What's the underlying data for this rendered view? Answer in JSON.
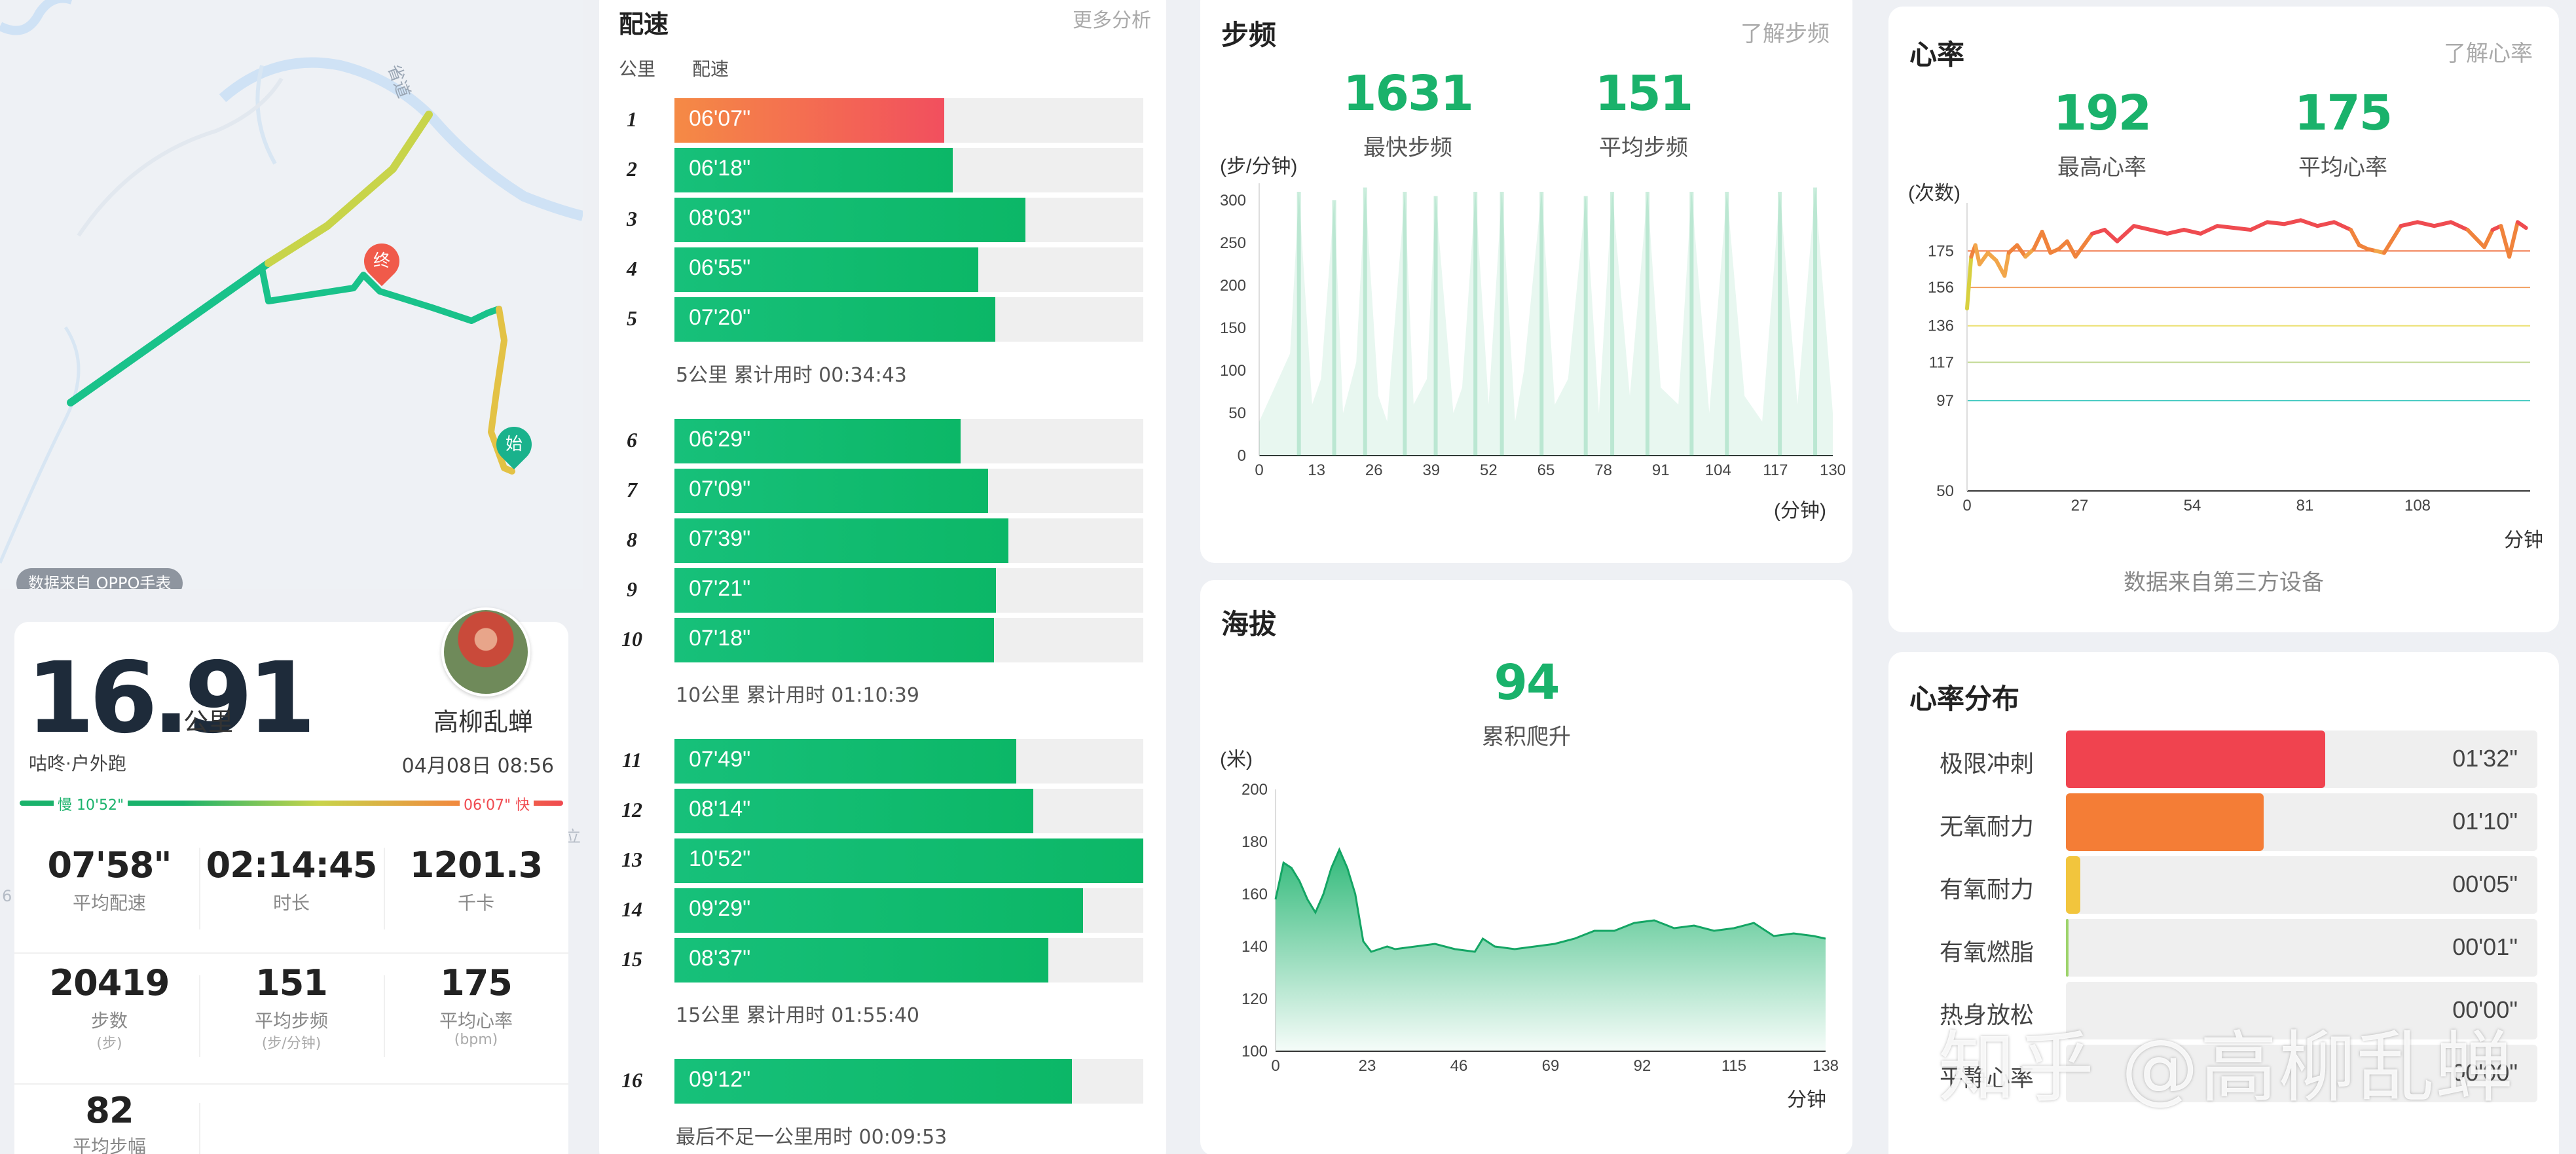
{
  "map": {
    "road_label": "省道",
    "end_marker": "终",
    "start_marker": "始",
    "source_badge": "数据来自 OPPO手表",
    "stray_label": "立",
    "stray_num": "6"
  },
  "summary": {
    "distance": "16.91",
    "distance_unit": "公里",
    "user_name": "高柳乱蝉",
    "activity": "咕咚·户外跑",
    "datetime": "04月08日 08:56",
    "slow_label": "慢 10'52\"",
    "fast_label": "06'07\" 快",
    "stats": [
      {
        "value": "07'58\"",
        "label": "平均配速",
        "sub": ""
      },
      {
        "value": "02:14:45",
        "label": "时长",
        "sub": ""
      },
      {
        "value": "1201.3",
        "label": "千卡",
        "sub": ""
      },
      {
        "value": "20419",
        "label": "步数",
        "sub": "(步)"
      },
      {
        "value": "151",
        "label": "平均步频",
        "sub": "(步/分钟)"
      },
      {
        "value": "175",
        "label": "平均心率",
        "sub": "(bpm)"
      },
      {
        "value": "82",
        "label": "平均步幅",
        "sub": ""
      }
    ]
  },
  "pace": {
    "title": "配速",
    "more": "更多分析",
    "col_km": "公里",
    "col_pace": "配速",
    "rows": [
      {
        "km": "1",
        "pace": "06'07\"",
        "fraction": 0.575,
        "fast": true
      },
      {
        "km": "2",
        "pace": "06'18\"",
        "fraction": 0.593
      },
      {
        "km": "3",
        "pace": "08'03\"",
        "fraction": 0.749
      },
      {
        "km": "4",
        "pace": "06'55\"",
        "fraction": 0.648
      },
      {
        "km": "5",
        "pace": "07'20\"",
        "fraction": 0.684
      },
      {
        "km": "6",
        "pace": "06'29\"",
        "fraction": 0.61
      },
      {
        "km": "7",
        "pace": "07'09\"",
        "fraction": 0.669
      },
      {
        "km": "8",
        "pace": "07'39\"",
        "fraction": 0.712
      },
      {
        "km": "9",
        "pace": "07'21\"",
        "fraction": 0.686
      },
      {
        "km": "10",
        "pace": "07'18\"",
        "fraction": 0.682
      },
      {
        "km": "11",
        "pace": "07'49\"",
        "fraction": 0.729
      },
      {
        "km": "12",
        "pace": "08'14\"",
        "fraction": 0.766
      },
      {
        "km": "13",
        "pace": "10'52\"",
        "fraction": 1.0
      },
      {
        "km": "14",
        "pace": "09'29\"",
        "fraction": 0.872
      },
      {
        "km": "15",
        "pace": "08'37\"",
        "fraction": 0.798
      },
      {
        "km": "16",
        "pace": "09'12\"",
        "fraction": 0.848
      }
    ],
    "summaries": [
      "5公里 累计用时 00:34:43",
      "10公里 累计用时 01:10:39",
      "15公里 累计用时 01:55:40",
      "最后不足一公里用时 00:09:53"
    ]
  },
  "cadence": {
    "title": "步频",
    "link": "了解步频",
    "max_value": "1631",
    "max_label": "最快步频",
    "avg_value": "151",
    "avg_label": "平均步频",
    "y_unit": "(步/分钟)",
    "x_unit": "(分钟)"
  },
  "altitude": {
    "title": "海拔",
    "value": "94",
    "label": "累积爬升",
    "y_unit": "(米)",
    "x_unit": "分钟"
  },
  "heart": {
    "title": "心率",
    "link": "了解心率",
    "max_value": "192",
    "max_label": "最高心率",
    "avg_value": "175",
    "avg_label": "平均心率",
    "y_unit": "(次数)",
    "x_unit": "分钟",
    "source": "数据来自第三方设备"
  },
  "hr_dist": {
    "title": "心率分布",
    "zones": [
      {
        "name": "极限冲刺",
        "time": "01'32\"",
        "fraction": 0.55,
        "color": "#f0434f"
      },
      {
        "name": "无氧耐力",
        "time": "01'10\"",
        "fraction": 0.42,
        "color": "#f47d36"
      },
      {
        "name": "有氧耐力",
        "time": "00'05\"",
        "fraction": 0.03,
        "color": "#f2c53d"
      },
      {
        "name": "有氧燃脂",
        "time": "00'01\"",
        "fraction": 0.006,
        "color": "#9dd36b"
      },
      {
        "name": "热身放松",
        "time": "00'00\"",
        "fraction": 0,
        "color": "#1ab26b"
      },
      {
        "name": "平静心率",
        "time": "00'00\"",
        "fraction": 0,
        "color": "#1ab26b"
      }
    ]
  },
  "watermark": "知乎 @高柳乱蝉",
  "chart_data": [
    {
      "type": "area",
      "title": "步频",
      "ylabel": "(步/分钟)",
      "xlabel": "(分钟)",
      "x_ticks": [
        0,
        13,
        26,
        39,
        52,
        65,
        78,
        91,
        104,
        117,
        130
      ],
      "y_ticks": [
        0,
        50,
        100,
        150,
        200,
        250,
        300
      ],
      "ylim": [
        0,
        320
      ],
      "xlim": [
        0,
        130
      ],
      "series": [
        {
          "x": [
            0,
            7,
            9,
            12,
            14,
            17,
            19,
            22,
            24,
            27,
            29,
            33,
            35,
            38,
            40,
            44,
            46,
            49,
            52,
            55,
            58,
            60,
            64,
            67,
            70,
            74,
            77,
            80,
            84,
            88,
            91,
            95,
            98,
            102,
            106,
            110,
            114,
            118,
            122,
            126,
            130
          ],
          "values": [
            40,
            120,
            310,
            60,
            90,
            300,
            50,
            110,
            315,
            70,
            40,
            310,
            60,
            90,
            305,
            50,
            80,
            310,
            60,
            310,
            40,
            100,
            310,
            60,
            90,
            305,
            50,
            310,
            70,
            310,
            80,
            60,
            310,
            50,
            310,
            70,
            40,
            310,
            60,
            315,
            50
          ]
        }
      ]
    },
    {
      "type": "area",
      "title": "海拔",
      "ylabel": "(米)",
      "xlabel": "分钟",
      "x_ticks": [
        0,
        23,
        46,
        69,
        92,
        115,
        138
      ],
      "y_ticks": [
        100,
        120,
        140,
        160,
        180,
        200
      ],
      "ylim": [
        100,
        200
      ],
      "xlim": [
        0,
        138
      ],
      "series": [
        {
          "x": [
            0,
            2,
            4,
            6,
            8,
            10,
            12,
            14,
            16,
            18,
            20,
            22,
            24,
            26,
            28,
            30,
            40,
            45,
            50,
            52,
            55,
            60,
            70,
            75,
            80,
            85,
            90,
            95,
            100,
            105,
            110,
            115,
            120,
            125,
            130,
            135,
            138
          ],
          "values": [
            158,
            172,
            170,
            165,
            158,
            153,
            160,
            170,
            177,
            170,
            160,
            142,
            138,
            139,
            140,
            139,
            141,
            139,
            138,
            143,
            140,
            139,
            141,
            143,
            146,
            146,
            149,
            150,
            147,
            148,
            146,
            147,
            149,
            144,
            145,
            144,
            143
          ]
        }
      ]
    },
    {
      "type": "line",
      "title": "心率",
      "ylabel": "(次数)",
      "xlabel": "分钟",
      "x_ticks": [
        0,
        27,
        54,
        81,
        108
      ],
      "y_ticks": [
        50,
        97,
        117,
        136,
        156,
        175
      ],
      "ylim": [
        50,
        200
      ],
      "xlim": [
        0,
        135
      ],
      "reference_lines": [
        175,
        156,
        136,
        117,
        97
      ],
      "series": [
        {
          "x": [
            0,
            1,
            2,
            3,
            5,
            7,
            9,
            10,
            12,
            14,
            16,
            18,
            20,
            22,
            24,
            26,
            28,
            30,
            33,
            36,
            40,
            44,
            48,
            52,
            56,
            60,
            64,
            68,
            72,
            76,
            80,
            84,
            88,
            92,
            94,
            96,
            98,
            100,
            104,
            108,
            112,
            116,
            120,
            124,
            126,
            128,
            130,
            132,
            134
          ],
          "values": [
            145,
            172,
            178,
            168,
            174,
            170,
            162,
            174,
            178,
            172,
            176,
            185,
            174,
            176,
            180,
            172,
            178,
            184,
            186,
            180,
            188,
            186,
            184,
            186,
            184,
            188,
            187,
            186,
            190,
            189,
            191,
            188,
            190,
            186,
            178,
            176,
            175,
            174,
            188,
            190,
            188,
            190,
            186,
            177,
            186,
            188,
            172,
            190,
            187
          ]
        }
      ]
    }
  ]
}
